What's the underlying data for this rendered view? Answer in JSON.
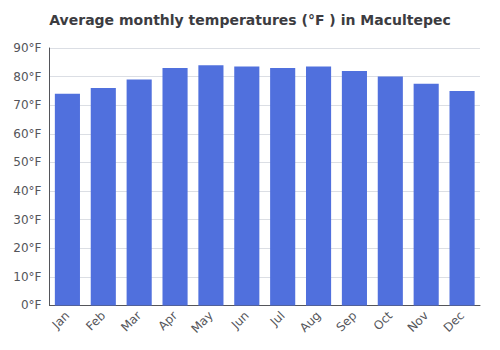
{
  "chart_data": {
    "type": "bar",
    "title": "Average monthly temperatures (°F ) in Macultepec",
    "categories": [
      "Jan",
      "Feb",
      "Mar",
      "Apr",
      "May",
      "Jun",
      "Jul",
      "Aug",
      "Sep",
      "Oct",
      "Nov",
      "Dec"
    ],
    "values": [
      74,
      76,
      79,
      83,
      84,
      83.5,
      83,
      83.5,
      82,
      80,
      77.5,
      75
    ],
    "ylim": [
      0,
      90
    ],
    "yticks": [
      {
        "value": 0,
        "label": "0°F"
      },
      {
        "value": 10,
        "label": "10°F"
      },
      {
        "value": 20,
        "label": "20°F"
      },
      {
        "value": 30,
        "label": "30°F"
      },
      {
        "value": 40,
        "label": "40°F"
      },
      {
        "value": 50,
        "label": "50°F"
      },
      {
        "value": 60,
        "label": "60°F"
      },
      {
        "value": 70,
        "label": "70°F"
      },
      {
        "value": 80,
        "label": "80°F"
      },
      {
        "value": 90,
        "label": "90°F"
      }
    ],
    "grid": true
  }
}
